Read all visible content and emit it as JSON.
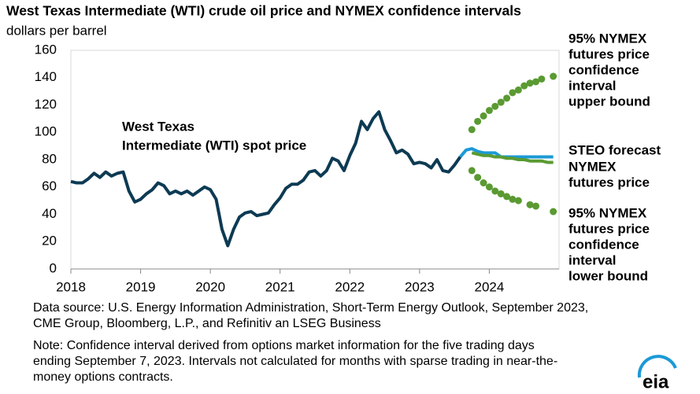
{
  "chart_data": {
    "type": "line",
    "title": "West Texas Intermediate (WTI) crude oil price and NYMEX confidence intervals",
    "subtitle": "dollars per barrel",
    "x": [
      2018.0,
      2018.083,
      2018.167,
      2018.25,
      2018.333,
      2018.417,
      2018.5,
      2018.583,
      2018.667,
      2018.75,
      2018.833,
      2018.917,
      2019.0,
      2019.083,
      2019.167,
      2019.25,
      2019.333,
      2019.417,
      2019.5,
      2019.583,
      2019.667,
      2019.75,
      2019.833,
      2019.917,
      2020.0,
      2020.083,
      2020.167,
      2020.25,
      2020.333,
      2020.417,
      2020.5,
      2020.583,
      2020.667,
      2020.75,
      2020.833,
      2020.917,
      2021.0,
      2021.083,
      2021.167,
      2021.25,
      2021.333,
      2021.417,
      2021.5,
      2021.583,
      2021.667,
      2021.75,
      2021.833,
      2021.917,
      2022.0,
      2022.083,
      2022.167,
      2022.25,
      2022.333,
      2022.417,
      2022.5,
      2022.583,
      2022.667,
      2022.75,
      2022.833,
      2022.917,
      2023.0,
      2023.083,
      2023.167,
      2023.25,
      2023.333,
      2023.417,
      2023.5,
      2023.583,
      2023.667,
      2023.75,
      2023.833,
      2023.917,
      2024.0,
      2024.083,
      2024.167,
      2024.25,
      2024.333,
      2024.417,
      2024.5,
      2024.583,
      2024.667,
      2024.75,
      2024.833,
      2024.917
    ],
    "series": [
      {
        "name": "West Texas Intermediate (WTI) spot price",
        "color": "#0d3a53",
        "marker": false,
        "values": [
          64,
          63,
          63,
          66,
          70,
          67,
          71,
          68,
          70,
          71,
          57,
          49,
          51,
          55,
          58,
          63,
          61,
          55,
          57,
          55,
          57,
          54,
          57,
          60,
          58,
          51,
          29,
          17,
          29,
          38,
          41,
          42,
          39,
          40,
          41,
          47,
          52,
          59,
          62,
          62,
          65,
          71,
          72,
          68,
          72,
          81,
          79,
          72,
          83,
          92,
          108,
          102,
          110,
          115,
          102,
          94,
          85,
          87,
          84,
          77,
          78,
          77,
          74,
          80,
          72,
          71,
          76,
          82,
          null,
          null,
          null,
          null,
          null,
          null,
          null,
          null,
          null,
          null,
          null,
          null,
          null,
          null,
          null,
          null
        ]
      },
      {
        "name": "STEO forecast",
        "color": "#1b9ad6",
        "marker": false,
        "values": [
          null,
          null,
          null,
          null,
          null,
          null,
          null,
          null,
          null,
          null,
          null,
          null,
          null,
          null,
          null,
          null,
          null,
          null,
          null,
          null,
          null,
          null,
          null,
          null,
          null,
          null,
          null,
          null,
          null,
          null,
          null,
          null,
          null,
          null,
          null,
          null,
          null,
          null,
          null,
          null,
          null,
          null,
          null,
          null,
          null,
          null,
          null,
          null,
          null,
          null,
          null,
          null,
          null,
          null,
          null,
          null,
          null,
          null,
          null,
          null,
          null,
          null,
          null,
          null,
          null,
          null,
          null,
          82,
          87,
          88,
          86,
          85,
          85,
          85,
          82,
          82,
          82,
          82,
          82,
          82,
          82,
          82,
          82,
          82
        ]
      },
      {
        "name": "NYMEX futures price",
        "color": "#5a9a32",
        "marker": false,
        "values": [
          null,
          null,
          null,
          null,
          null,
          null,
          null,
          null,
          null,
          null,
          null,
          null,
          null,
          null,
          null,
          null,
          null,
          null,
          null,
          null,
          null,
          null,
          null,
          null,
          null,
          null,
          null,
          null,
          null,
          null,
          null,
          null,
          null,
          null,
          null,
          null,
          null,
          null,
          null,
          null,
          null,
          null,
          null,
          null,
          null,
          null,
          null,
          null,
          null,
          null,
          null,
          null,
          null,
          null,
          null,
          null,
          null,
          null,
          null,
          null,
          null,
          null,
          null,
          null,
          null,
          null,
          null,
          null,
          null,
          85,
          84,
          83,
          83,
          82,
          82,
          81,
          81,
          80,
          80,
          79,
          79,
          79,
          78,
          78
        ]
      },
      {
        "name": "95% NYMEX futures price confidence interval upper bound",
        "color": "#5a9a32",
        "marker": true,
        "values": [
          null,
          null,
          null,
          null,
          null,
          null,
          null,
          null,
          null,
          null,
          null,
          null,
          null,
          null,
          null,
          null,
          null,
          null,
          null,
          null,
          null,
          null,
          null,
          null,
          null,
          null,
          null,
          null,
          null,
          null,
          null,
          null,
          null,
          null,
          null,
          null,
          null,
          null,
          null,
          null,
          null,
          null,
          null,
          null,
          null,
          null,
          null,
          null,
          null,
          null,
          null,
          null,
          null,
          null,
          null,
          null,
          null,
          null,
          null,
          null,
          null,
          null,
          null,
          null,
          null,
          null,
          null,
          null,
          null,
          102,
          108,
          112,
          116,
          119,
          122,
          125,
          129,
          131,
          134,
          136,
          137,
          139,
          null,
          141
        ]
      },
      {
        "name": "95% NYMEX futures price confidence interval lower bound",
        "color": "#5a9a32",
        "marker": true,
        "values": [
          null,
          null,
          null,
          null,
          null,
          null,
          null,
          null,
          null,
          null,
          null,
          null,
          null,
          null,
          null,
          null,
          null,
          null,
          null,
          null,
          null,
          null,
          null,
          null,
          null,
          null,
          null,
          null,
          null,
          null,
          null,
          null,
          null,
          null,
          null,
          null,
          null,
          null,
          null,
          null,
          null,
          null,
          null,
          null,
          null,
          null,
          null,
          null,
          null,
          null,
          null,
          null,
          null,
          null,
          null,
          null,
          null,
          null,
          null,
          null,
          null,
          null,
          null,
          null,
          null,
          null,
          null,
          null,
          null,
          72,
          67,
          63,
          60,
          57,
          55,
          53,
          51,
          50,
          null,
          47,
          46,
          null,
          null,
          42
        ]
      }
    ],
    "annotations": [
      {
        "lines": [
          "West Texas",
          "Intermediate (WTI) spot price"
        ],
        "color": "#0d3a53"
      },
      {
        "lines": [
          "95% NYMEX",
          "futures price",
          "confidence",
          "interval",
          "upper bound"
        ],
        "color": "#5a9a32"
      },
      {
        "lines": [
          "STEO forecast"
        ],
        "color": "#1b9ad6"
      },
      {
        "lines": [
          "NYMEX",
          "futures price"
        ],
        "color": "#5a9a32"
      },
      {
        "lines": [
          "95% NYMEX",
          "futures price",
          "confidence",
          "interval",
          "lower bound"
        ],
        "color": "#5a9a32"
      }
    ],
    "xlim": [
      2018,
      2025
    ],
    "xticks": [
      2018,
      2019,
      2020,
      2021,
      2022,
      2023,
      2024
    ],
    "ylim": [
      0,
      160
    ],
    "yticks": [
      0,
      20,
      40,
      60,
      80,
      100,
      120,
      140,
      160
    ],
    "grid": false,
    "source": [
      "Data source: U.S. Energy Information Administration, Short-Term Energy Outlook, September 2023,",
      "CME Group, Bloomberg, L.P., and Refinitiv an LSEG Business"
    ],
    "note": [
      "Note: Confidence interval derived from options market information for the five trading days",
      "ending September 7, 2023. Intervals not calculated for months with sparse trading in near-the-",
      "money options contracts."
    ],
    "logo": "eia"
  }
}
